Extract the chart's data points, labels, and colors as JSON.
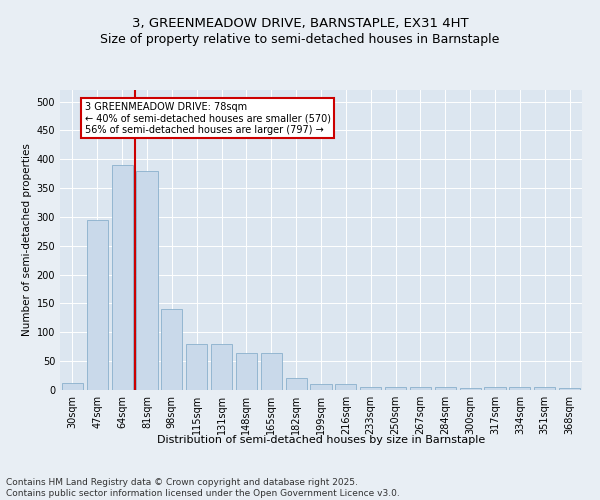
{
  "title": "3, GREENMEADOW DRIVE, BARNSTAPLE, EX31 4HT",
  "subtitle": "Size of property relative to semi-detached houses in Barnstaple",
  "xlabel": "Distribution of semi-detached houses by size in Barnstaple",
  "ylabel": "Number of semi-detached properties",
  "categories": [
    "30sqm",
    "47sqm",
    "64sqm",
    "81sqm",
    "98sqm",
    "115sqm",
    "131sqm",
    "148sqm",
    "165sqm",
    "182sqm",
    "199sqm",
    "216sqm",
    "233sqm",
    "250sqm",
    "267sqm",
    "284sqm",
    "300sqm",
    "317sqm",
    "334sqm",
    "351sqm",
    "368sqm"
  ],
  "values": [
    12,
    295,
    390,
    380,
    140,
    80,
    80,
    65,
    65,
    20,
    10,
    10,
    6,
    5,
    5,
    5,
    3,
    5,
    5,
    5,
    3
  ],
  "bar_color": "#c9d9ea",
  "bar_edge_color": "#8ab0cc",
  "property_size": "78sqm",
  "pct_smaller": 40,
  "pct_larger": 56,
  "n_smaller": 570,
  "n_larger": 797,
  "annotation_box_color": "#ffffff",
  "annotation_box_edge": "#cc0000",
  "line_color": "#cc0000",
  "ylim": [
    0,
    520
  ],
  "yticks": [
    0,
    50,
    100,
    150,
    200,
    250,
    300,
    350,
    400,
    450,
    500
  ],
  "bg_color": "#e8eef4",
  "plot_bg": "#dce6f0",
  "footer": "Contains HM Land Registry data © Crown copyright and database right 2025.\nContains public sector information licensed under the Open Government Licence v3.0.",
  "title_fontsize": 9.5,
  "xlabel_fontsize": 8,
  "ylabel_fontsize": 7.5,
  "tick_fontsize": 7,
  "footer_fontsize": 6.5,
  "annot_fontsize": 7
}
